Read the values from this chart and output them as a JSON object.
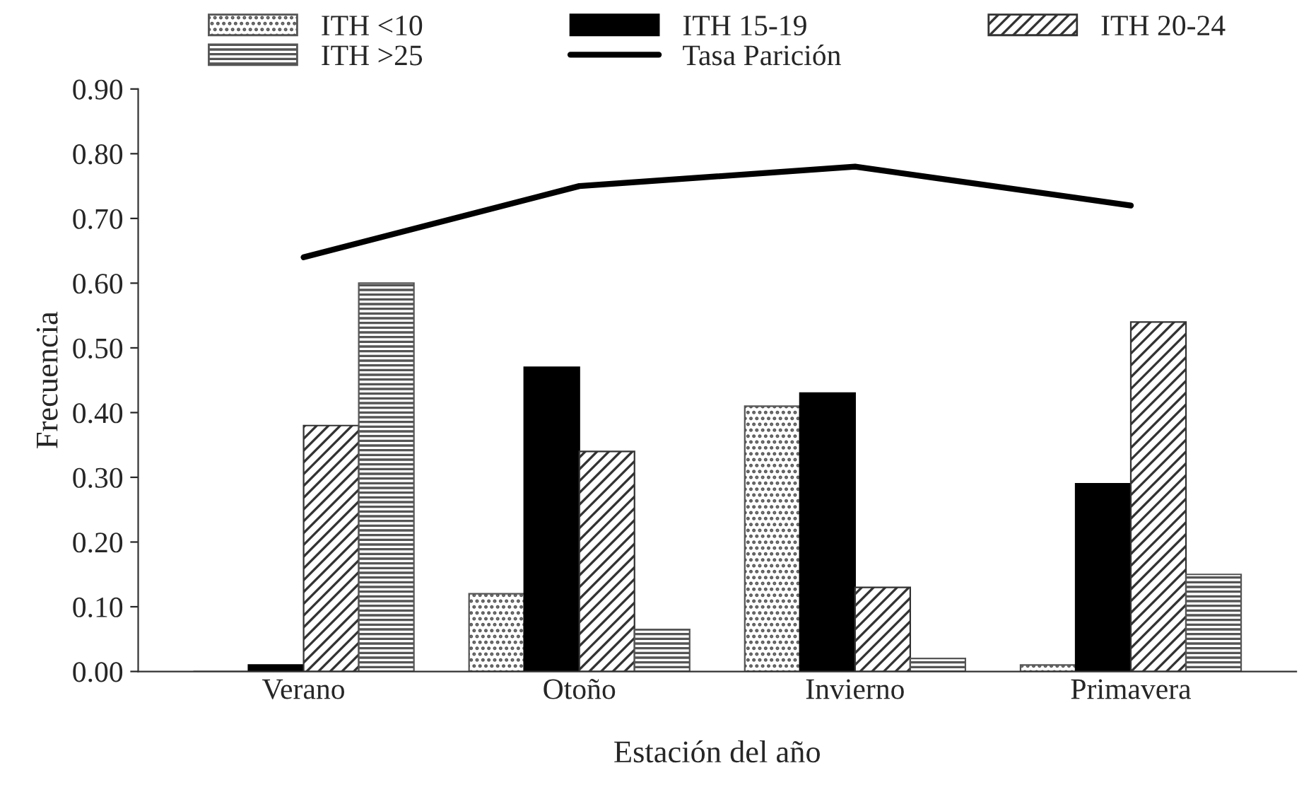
{
  "chart_data": {
    "type": "bar",
    "xlabel": "Estación del año",
    "ylabel": "Frecuencia",
    "categories": [
      "Verano",
      "Otoño",
      "Invierno",
      "Primavera"
    ],
    "series": [
      {
        "name": "ITH <10",
        "color": "#555555",
        "values": [
          0,
          0.12,
          0.41,
          0.01
        ]
      },
      {
        "name": "ITH 15-19",
        "color": "#000000",
        "values": [
          0.01,
          0.47,
          0.43,
          0.29
        ]
      },
      {
        "name": "ITH 20-24",
        "color": "#333333",
        "values": [
          0.38,
          0.34,
          0.13,
          0.54
        ]
      },
      {
        "name": "ITH >25",
        "color": "#555555",
        "values": [
          0.6,
          0.065,
          0.02,
          0.15
        ]
      },
      {
        "name": "Tasa Parición",
        "type": "line",
        "color": "#000000",
        "values": [
          0.64,
          0.75,
          0.78,
          0.72
        ]
      }
    ],
    "ylim": [
      0,
      0.9
    ],
    "yticks": [
      {
        "value": 0,
        "label": "0.00"
      },
      {
        "value": 0.1,
        "label": "0.10"
      },
      {
        "value": 0.2,
        "label": "0.20"
      },
      {
        "value": 0.3,
        "label": "0.30"
      },
      {
        "value": 0.4,
        "label": "0.40"
      },
      {
        "value": 0.5,
        "label": "0.50"
      },
      {
        "value": 0.6,
        "label": "0.60"
      },
      {
        "value": 0.7,
        "label": "0.70"
      },
      {
        "value": 0.8,
        "label": "0.80"
      },
      {
        "value": 0.9,
        "label": "0.90"
      }
    ],
    "grid": false,
    "legend": "top",
    "marker": "none",
    "line_style": "solid"
  }
}
